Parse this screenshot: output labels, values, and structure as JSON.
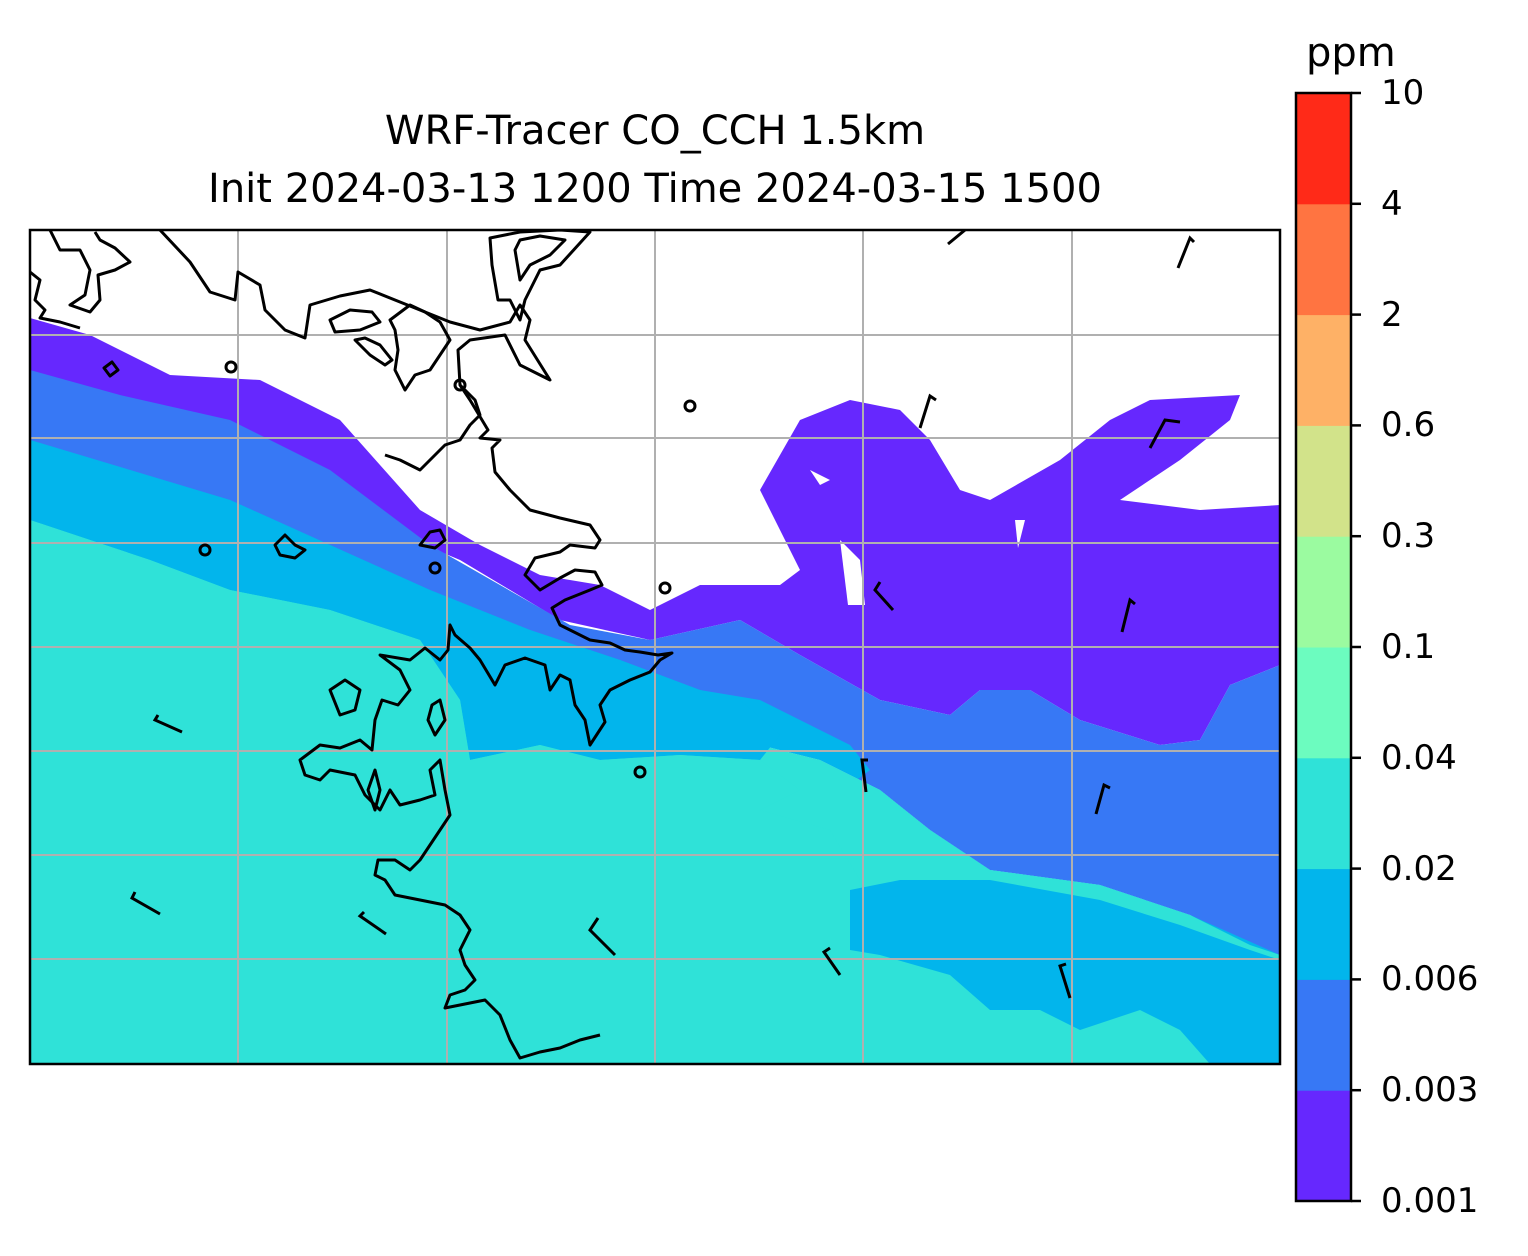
{
  "title": {
    "line1": "WRF-Tracer CO_CCH 1.5km",
    "line2": "Init 2024-03-13 1200 Time 2024-03-15 1500"
  },
  "colorbar": {
    "unit": "ppm",
    "levels": [
      "0.001",
      "0.003",
      "0.006",
      "0.02",
      "0.04",
      "0.1",
      "0.3",
      "0.6",
      "2",
      "4",
      "10"
    ],
    "colors": [
      "#6628FE",
      "#3778F5",
      "#02B5EC",
      "#2FE2D8",
      "#6CFCBF",
      "#9BFBA0",
      "#D2E38A",
      "#FEB166",
      "#FF7441",
      "#FF2A18"
    ]
  },
  "map": {
    "background": "#ffffff",
    "gridline_color": "#b0b0b0",
    "coastline_color": "#000000",
    "wind_barbs": "black"
  }
}
